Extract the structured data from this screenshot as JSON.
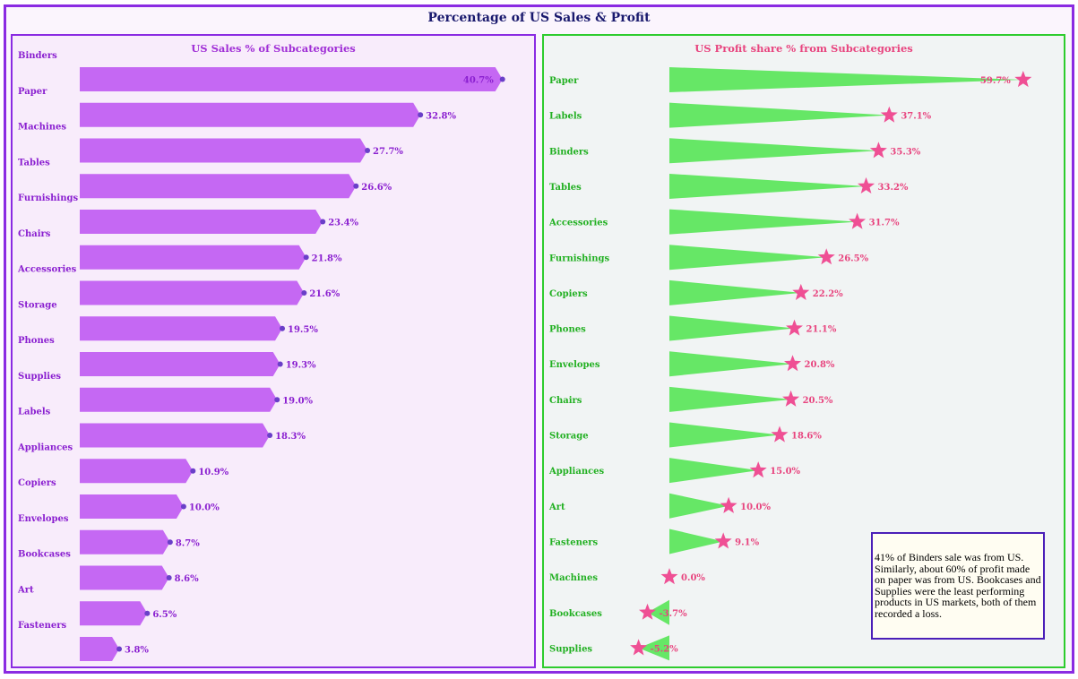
{
  "title": "Percentage of US Sales & Profit",
  "note": "41% of Binders sale was from US. Similarly, about 60% of profit made on paper was from US.  Bookcases and Supplies were the least performing products in US markets, both of them recorded a loss.",
  "colors": {
    "sales_fill": "#bf5af2",
    "sales_dot": "#6a3fc8",
    "sales_text": "#8a1fd0",
    "profit_fill": "#5ee65e",
    "profit_star": "#ef4f94",
    "profit_label": "#22b022",
    "profit_value": "#e8457f",
    "panel_title_left": "#a02fd6",
    "panel_title_right": "#e8457f"
  },
  "chart_data": [
    {
      "type": "bar",
      "title": "US Sales % of Subcategories",
      "categories": [
        "Binders",
        "Paper",
        "Machines",
        "Tables",
        "Furnishings",
        "Chairs",
        "Accessories",
        "Storage",
        "Phones",
        "Supplies",
        "Labels",
        "Appliances",
        "Copiers",
        "Envelopes",
        "Bookcases",
        "Art",
        "Fasteners"
      ],
      "values": [
        40.7,
        32.8,
        27.7,
        26.6,
        23.4,
        21.8,
        21.6,
        19.5,
        19.3,
        19.0,
        18.3,
        10.9,
        10.0,
        8.7,
        8.6,
        6.5,
        3.8
      ],
      "value_labels": [
        "40.7%",
        "32.8%",
        "27.7%",
        "26.6%",
        "23.4%",
        "21.8%",
        "21.6%",
        "19.5%",
        "19.3%",
        "19.0%",
        "18.3%",
        "10.9%",
        "10.0%",
        "8.7%",
        "8.6%",
        "6.5%",
        "3.8%"
      ],
      "xlim": [
        0,
        41.5
      ],
      "grid": false
    },
    {
      "type": "bar",
      "title": "US Profit share % from Subcategories",
      "categories": [
        "Paper",
        "Labels",
        "Binders",
        "Tables",
        "Accessories",
        "Furnishings",
        "Copiers",
        "Phones",
        "Envelopes",
        "Chairs",
        "Storage",
        "Appliances",
        "Art",
        "Fasteners",
        "Machines",
        "Bookcases",
        "Supplies"
      ],
      "values": [
        59.7,
        37.1,
        35.3,
        33.2,
        31.7,
        26.5,
        22.2,
        21.1,
        20.8,
        20.5,
        18.6,
        15.0,
        10.0,
        9.1,
        0.0,
        -3.7,
        -5.2
      ],
      "value_labels": [
        "59.7%",
        "37.1%",
        "35.3%",
        "33.2%",
        "31.7%",
        "26.5%",
        "22.2%",
        "21.1%",
        "20.8%",
        "20.5%",
        "18.6%",
        "15.0%",
        "10.0%",
        "9.1%",
        "0.0%",
        "-3.7%",
        "-5.2%"
      ],
      "xlim": [
        -8,
        62
      ],
      "grid": false
    }
  ]
}
